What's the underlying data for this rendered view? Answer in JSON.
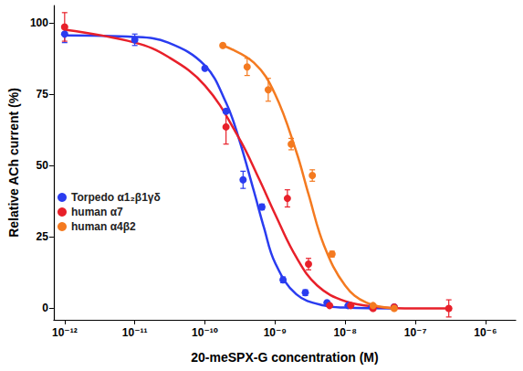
{
  "chart_data": {
    "type": "scatter",
    "x_label": "20-meSPX-G concentration (M)",
    "y_label": "Relative ACh current (%)",
    "log": "x",
    "grid": false,
    "legend": "lower left",
    "xlim": [
      7e-13,
      2.7e-06
    ],
    "xticks": [
      {
        "value": 1e-12,
        "label": "10⁻¹²"
      },
      {
        "value": 1e-11,
        "label": "10⁻¹¹"
      },
      {
        "value": 1e-10,
        "label": "10⁻¹⁰"
      },
      {
        "value": 1e-09,
        "label": "10⁻⁹"
      },
      {
        "value": 1e-08,
        "label": "10⁻⁸"
      },
      {
        "value": 1e-07,
        "label": "10⁻⁷"
      },
      {
        "value": 1e-06,
        "label": "10⁻⁶"
      }
    ],
    "ylim": [
      -4,
      106
    ],
    "yticks": [
      0,
      25,
      50,
      75,
      100
    ],
    "series": [
      {
        "name": "Torpedo α1₂β1γδ",
        "color": "#2a3cf0",
        "marker": "circle",
        "x": [
          1e-12,
          1e-11,
          1e-10,
          2e-10,
          3.5e-10,
          6.5e-10,
          1.3e-09,
          2.7e-09,
          5.5e-09,
          1.1e-08,
          2.4e-08,
          5e-08
        ],
        "values": [
          96,
          94,
          84,
          69,
          45,
          35.5,
          10,
          5.5,
          2,
          1,
          0.5,
          0.5
        ],
        "errors": [
          3,
          2,
          0,
          0,
          3,
          1,
          1,
          1,
          0,
          0,
          0,
          0
        ],
        "fit_x": [
          1e-12,
          1e-11,
          3e-11,
          1e-10,
          2e-10,
          3e-10,
          5e-10,
          7e-10,
          1e-09,
          2e-09,
          5e-09,
          1e-08,
          5e-08
        ],
        "fit_values": [
          95.5,
          95,
          93,
          85,
          72,
          60,
          41,
          28,
          16,
          5,
          1,
          0.3,
          0
        ]
      },
      {
        "name": "human α7",
        "color": "#e8202a",
        "marker": "circle",
        "x": [
          1e-12,
          2e-10,
          1.5e-09,
          3e-09,
          6e-09,
          1.2e-08,
          2.5e-08,
          5e-08,
          3e-07
        ],
        "values": [
          98.5,
          63.5,
          38.5,
          15.5,
          1,
          1,
          0,
          0.5,
          0
        ],
        "errors": [
          5,
          6,
          3,
          2,
          0,
          0,
          0,
          0,
          3
        ],
        "fit_x": [
          1e-12,
          1e-11,
          3e-11,
          1e-10,
          3e-10,
          6e-10,
          1e-09,
          2e-09,
          4e-09,
          1e-08,
          3e-08,
          1e-07,
          3e-07
        ],
        "fit_values": [
          97.5,
          93,
          88,
          78,
          60,
          45,
          33,
          18,
          8,
          2.5,
          0.5,
          0,
          0
        ]
      },
      {
        "name": "human α4β2",
        "color": "#f47a20",
        "marker": "circle",
        "x": [
          1.8e-10,
          4e-10,
          8e-10,
          1.7e-09,
          3.4e-09,
          6.5e-09,
          2.5e-08,
          5e-08
        ],
        "values": [
          92,
          84.5,
          76.5,
          57.5,
          46.5,
          19,
          1,
          0
        ],
        "errors": [
          0,
          3,
          4,
          2,
          2,
          1,
          0,
          0
        ],
        "fit_x": [
          1.8e-10,
          5e-10,
          1e-09,
          2e-09,
          3e-09,
          5e-09,
          1e-08,
          2e-08,
          5e-08
        ],
        "fit_values": [
          92,
          86,
          75,
          55,
          40,
          22,
          8,
          2,
          0
        ]
      }
    ]
  }
}
